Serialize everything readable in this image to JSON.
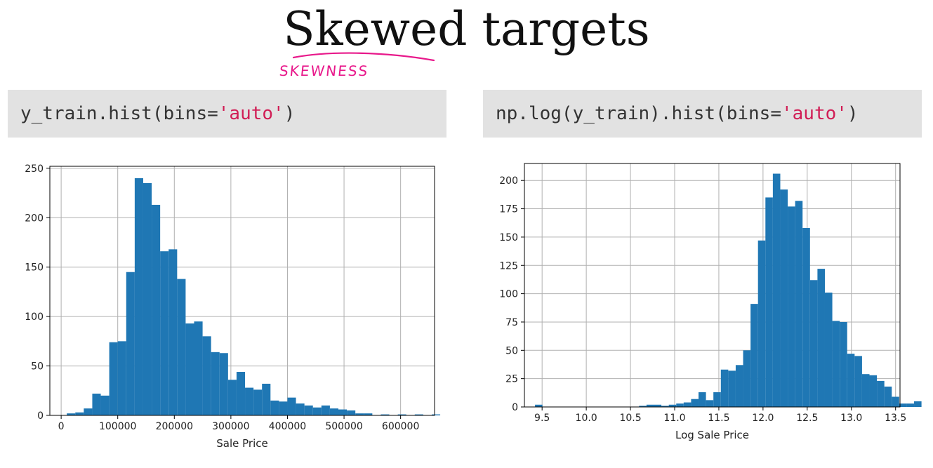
{
  "slide": {
    "title": "Skewed targets",
    "annotation": "SKEWNESS",
    "annotation_color": "#e8198b"
  },
  "code": [
    {
      "prefix": "y_train.hist(bins=",
      "string": "'auto'",
      "suffix": ")"
    },
    {
      "prefix": "np.log(y_train).hist(bins=",
      "string": "'auto'",
      "suffix": ")"
    }
  ],
  "chart_data": [
    {
      "type": "bar",
      "title": "",
      "xlabel": "Sale Price",
      "ylabel": "",
      "grid": true,
      "bar_color": "#1f77b4",
      "xlim": [
        -20000,
        660000
      ],
      "ylim": [
        0,
        252
      ],
      "xticks": [
        0,
        100000,
        200000,
        300000,
        400000,
        500000,
        600000
      ],
      "yticks": [
        0,
        50,
        100,
        150,
        200,
        250
      ],
      "bin_start": 10000,
      "bin_width": 15000,
      "values": [
        2,
        3,
        7,
        22,
        20,
        74,
        75,
        145,
        240,
        235,
        213,
        166,
        168,
        138,
        93,
        95,
        80,
        64,
        63,
        36,
        44,
        28,
        26,
        32,
        15,
        14,
        18,
        12,
        10,
        8,
        10,
        7,
        6,
        5,
        2,
        2,
        0,
        1,
        0,
        1,
        0,
        1,
        0,
        1,
        0
      ]
    },
    {
      "type": "bar",
      "title": "",
      "xlabel": "Log Sale Price",
      "ylabel": "",
      "grid": true,
      "bar_color": "#1f77b4",
      "xlim": [
        9.3,
        13.55
      ],
      "ylim": [
        0,
        215
      ],
      "xticks": [
        9.5,
        10.0,
        10.5,
        11.0,
        11.5,
        12.0,
        12.5,
        13.0,
        13.5
      ],
      "yticks": [
        0,
        25,
        50,
        75,
        100,
        125,
        150,
        175,
        200
      ],
      "bin_start": 9.42,
      "bin_width": 0.0841,
      "values": [
        2,
        0,
        0,
        0,
        0,
        0,
        0,
        0,
        0,
        0,
        0,
        0,
        0,
        0,
        1,
        2,
        2,
        1,
        2,
        3,
        4,
        7,
        13,
        6,
        13,
        33,
        32,
        37,
        50,
        91,
        147,
        185,
        206,
        192,
        177,
        182,
        158,
        112,
        122,
        101,
        76,
        75,
        47,
        45,
        29,
        28,
        23,
        18,
        9,
        3,
        3,
        5
      ]
    }
  ]
}
